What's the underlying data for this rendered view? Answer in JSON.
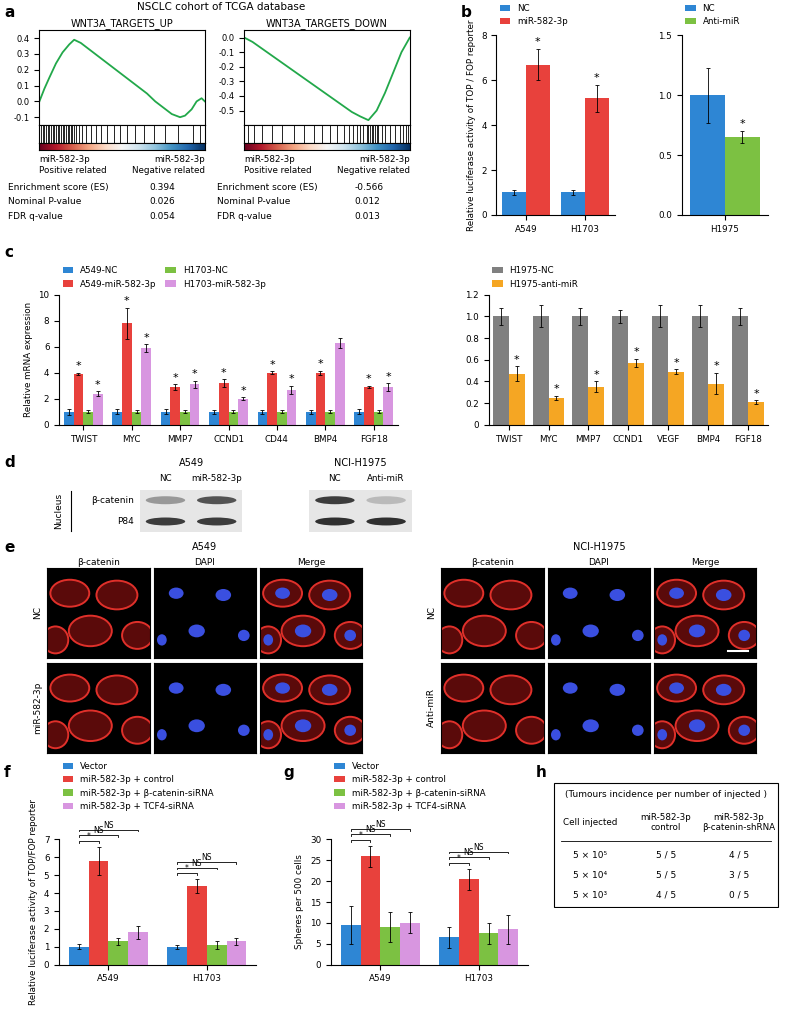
{
  "chart_data": [
    {
      "type": "gsea",
      "panel": "a",
      "header": "NSCLC cohort of TCGA database",
      "title": "WNT3A_TARGETS_UP",
      "x": [
        0,
        3,
        6,
        10,
        14,
        18,
        21,
        25,
        30,
        35,
        40,
        45,
        50,
        55,
        60,
        65,
        70,
        75,
        80,
        85,
        88,
        92,
        95,
        98,
        100
      ],
      "values": [
        0,
        0.08,
        0.15,
        0.24,
        0.31,
        0.36,
        0.39,
        0.37,
        0.33,
        0.29,
        0.25,
        0.21,
        0.17,
        0.13,
        0.09,
        0.05,
        0.0,
        -0.04,
        -0.08,
        -0.1,
        -0.09,
        -0.05,
        0.0,
        0.02,
        0.0
      ],
      "hits": [
        1,
        2,
        3,
        4,
        5,
        6,
        7,
        8,
        9,
        10,
        11,
        12,
        13,
        14,
        15,
        16,
        17,
        18,
        19,
        20,
        21,
        22,
        24,
        26,
        28,
        31,
        34,
        37,
        41,
        45,
        49,
        53,
        58,
        63,
        69,
        76,
        84,
        93,
        97
      ],
      "color": "#22a84a",
      "xlim": [
        0,
        100
      ],
      "ylim": [
        -0.15,
        0.45
      ],
      "yticks": [
        -0.1,
        0.0,
        0.1,
        0.2,
        0.3,
        0.4
      ],
      "tick_labels": "y",
      "rank_labels": [
        "miR-582-3p\nPositive related",
        "miR-582-3p\nNegative related"
      ],
      "stats": [
        {
          "label": "Enrichment score (ES)",
          "value": 0.394
        },
        {
          "label": "Nominal P-value",
          "value": 0.026
        },
        {
          "label": "FDR q-value",
          "value": 0.054
        }
      ]
    },
    {
      "type": "gsea",
      "title": "WNT3A_TARGETS_DOWN",
      "x": [
        0,
        5,
        10,
        15,
        20,
        25,
        30,
        35,
        40,
        45,
        50,
        55,
        60,
        65,
        70,
        75,
        80,
        85,
        90,
        95,
        100
      ],
      "values": [
        0,
        -0.03,
        -0.07,
        -0.11,
        -0.15,
        -0.19,
        -0.23,
        -0.27,
        -0.31,
        -0.35,
        -0.39,
        -0.43,
        -0.47,
        -0.51,
        -0.54,
        -0.566,
        -0.5,
        -0.38,
        -0.24,
        -0.1,
        0.0
      ],
      "hits": [
        2,
        6,
        11,
        17,
        23,
        30,
        36,
        42,
        47,
        52,
        56,
        60,
        63,
        66,
        68,
        70,
        72,
        74,
        75,
        76,
        77,
        78,
        79,
        80,
        81,
        83,
        85,
        88,
        91,
        94,
        96,
        98,
        99
      ],
      "color": "#22a84a",
      "xlim": [
        0,
        100
      ],
      "ylim": [
        -0.6,
        0.05
      ],
      "yticks": [
        -0.5,
        -0.4,
        -0.3,
        -0.2,
        -0.1,
        0.0
      ],
      "tick_labels": "y",
      "rank_labels": [
        "miR-582-3p\nPositive related",
        "miR-582-3p\nNegative related"
      ],
      "stats": [
        {
          "label": "Enrichment score (ES)",
          "value": -0.566
        },
        {
          "label": "Nominal P-value",
          "value": 0.012
        },
        {
          "label": "FDR q-value",
          "value": 0.013
        }
      ]
    },
    {
      "type": "bar",
      "panel": "b",
      "categories": [
        "A549",
        "H1703"
      ],
      "ylabel": "Relative luciferase activity of TOP / FOP reporter",
      "ylim": [
        0,
        8
      ],
      "yticks": [
        0,
        2,
        4,
        6,
        8
      ],
      "legend": "above",
      "series": [
        {
          "name": "NC",
          "color": "#2e86d4",
          "values": [
            1,
            1
          ],
          "errors": [
            0.1,
            0.1
          ],
          "significance": [
            null,
            null
          ]
        },
        {
          "name": "miR-582-3p",
          "color": "#e8413c",
          "values": [
            6.7,
            5.2
          ],
          "errors": [
            0.7,
            0.6
          ],
          "significance": [
            "*",
            "*"
          ]
        }
      ]
    },
    {
      "type": "bar",
      "categories": [
        "H1975"
      ],
      "ylim": [
        0,
        1.5
      ],
      "yticks": [
        0.0,
        0.5,
        1.0,
        1.5
      ],
      "legend": "above",
      "series": [
        {
          "name": "NC",
          "color": "#2e86d4",
          "values": [
            1.0
          ],
          "errors": [
            0.23
          ],
          "significance": [
            null
          ]
        },
        {
          "name": "Anti-miR",
          "color": "#7cc142",
          "values": [
            0.65
          ],
          "errors": [
            0.05
          ],
          "significance": [
            "*"
          ]
        }
      ]
    },
    {
      "type": "bar",
      "panel": "c",
      "categories": [
        "TWIST",
        "MYC",
        "MMP7",
        "CCND1",
        "CD44",
        "BMP4",
        "FGF18"
      ],
      "ylabel": "Relative mRNA expression",
      "ylim": [
        0,
        10
      ],
      "yticks": [
        0,
        2,
        4,
        6,
        8,
        10
      ],
      "legend": "above",
      "series": [
        {
          "name": "A549-NC",
          "color": "#2e86d4",
          "values": [
            1,
            1,
            1,
            1,
            1,
            1,
            1
          ],
          "errors": [
            0.25,
            0.2,
            0.2,
            0.15,
            0.15,
            0.15,
            0.2
          ]
        },
        {
          "name": "A549-miR-582-3p",
          "color": "#e8413c",
          "values": [
            3.9,
            7.8,
            2.9,
            3.2,
            4.0,
            4.0,
            2.9
          ],
          "errors": [
            0.1,
            1.2,
            0.2,
            0.3,
            0.1,
            0.15,
            0.1
          ],
          "significance": [
            "*",
            "*",
            "*",
            "*",
            "*",
            "*",
            "*"
          ]
        },
        {
          "name": "H1703-NC",
          "color": "#7cc142",
          "values": [
            1,
            1,
            1,
            1,
            1,
            1,
            1
          ],
          "errors": [
            0.1,
            0.1,
            0.1,
            0.1,
            0.1,
            0.1,
            0.1
          ]
        },
        {
          "name": "H1703-miR-582-3p",
          "color": "#d896e0",
          "values": [
            2.4,
            5.9,
            3.1,
            2.0,
            2.7,
            6.3,
            2.9
          ],
          "errors": [
            0.2,
            0.3,
            0.3,
            0.1,
            0.3,
            0.4,
            0.3
          ],
          "significance": [
            "*",
            "*",
            "*",
            "*",
            "*",
            null,
            "*"
          ]
        }
      ]
    },
    {
      "type": "bar",
      "categories": [
        "TWIST",
        "MYC",
        "MMP7",
        "CCND1",
        "VEGF",
        "BMP4",
        "FGF18"
      ],
      "ylim": [
        0,
        1.2
      ],
      "yticks": [
        0,
        0.2,
        0.4,
        0.6,
        0.8,
        1.0,
        1.2
      ],
      "legend": "above",
      "series": [
        {
          "name": "H1975-NC",
          "color": "#808080",
          "values": [
            1,
            1,
            1,
            1,
            1,
            1,
            1
          ],
          "errors": [
            0.08,
            0.1,
            0.08,
            0.06,
            0.1,
            0.1,
            0.08
          ]
        },
        {
          "name": "H1975-anti-miR",
          "color": "#f5a623",
          "values": [
            0.47,
            0.25,
            0.35,
            0.57,
            0.49,
            0.38,
            0.21
          ],
          "errors": [
            0.07,
            0.02,
            0.05,
            0.04,
            0.02,
            0.1,
            0.02
          ],
          "significance": [
            "*",
            "*",
            "*",
            "*",
            "*",
            "*",
            "*"
          ]
        }
      ]
    },
    {
      "type": "blot",
      "panel": "d",
      "compartment": "Nucleus",
      "groups": [
        {
          "name": "A549",
          "lanes": [
            "NC",
            "miR-582-3p"
          ]
        },
        {
          "name": "NCI-H1975",
          "lanes": [
            "NC",
            "Anti-miR"
          ]
        }
      ],
      "bands": [
        {
          "name": "β-catenin",
          "intensity": [
            0.45,
            0.75,
            0.85,
            0.3
          ]
        },
        {
          "name": "P84",
          "intensity": [
            0.85,
            0.85,
            0.9,
            0.9
          ]
        }
      ]
    },
    {
      "type": "image_grid",
      "panel": "e",
      "panels": [
        {
          "name": "A549",
          "columns": [
            "β-catenin",
            "DAPI",
            "Merge"
          ],
          "rows": [
            "NC",
            "miR-582-3p"
          ]
        },
        {
          "name": "NCI-H1975",
          "columns": [
            "β-catenin",
            "DAPI",
            "Merge"
          ],
          "rows": [
            "NC",
            "Anti-miR"
          ]
        }
      ]
    },
    {
      "type": "bar",
      "panel": "f",
      "categories": [
        "A549",
        "H1703"
      ],
      "ylabel": "Relative luciferase activity of TOP/FOP reporter",
      "ylim": [
        0,
        7
      ],
      "yticks": [
        0,
        1,
        2,
        3,
        4,
        5,
        6,
        7
      ],
      "legend": "above",
      "series": [
        {
          "name": "Vector",
          "color": "#2e86d4",
          "values": [
            1,
            1
          ],
          "errors": [
            0.15,
            0.1
          ]
        },
        {
          "name": "miR-582-3p + control",
          "color": "#e8413c",
          "values": [
            5.8,
            4.4
          ],
          "errors": [
            0.8,
            0.4
          ]
        },
        {
          "name": "miR-582-3p + β-catenin-siRNA",
          "color": "#7cc142",
          "values": [
            1.3,
            1.1
          ],
          "errors": [
            0.2,
            0.2
          ]
        },
        {
          "name": "miR-582-3p + TCF4-siRNA",
          "color": "#d896e0",
          "values": [
            1.8,
            1.3
          ],
          "errors": [
            0.35,
            0.2
          ]
        }
      ],
      "comparisons": [
        {
          "from": "Vector",
          "to": "miR-582-3p + control",
          "label": "*"
        },
        {
          "from": "Vector",
          "to": "miR-582-3p + β-catenin-siRNA",
          "label": "NS"
        },
        {
          "from": "Vector",
          "to": "miR-582-3p + TCF4-siRNA",
          "label": "NS"
        }
      ]
    },
    {
      "type": "bar",
      "panel": "g",
      "categories": [
        "A549",
        "H1703"
      ],
      "ylabel": "Spheres per 500 cells",
      "ylim": [
        0,
        30
      ],
      "yticks": [
        0,
        5,
        10,
        15,
        20,
        25,
        30
      ],
      "legend": "above",
      "series": [
        {
          "name": "Vector",
          "color": "#2e86d4",
          "values": [
            9.5,
            6.5
          ],
          "errors": [
            4.5,
            2.5
          ]
        },
        {
          "name": "miR-582-3p + control",
          "color": "#e8413c",
          "values": [
            26,
            20.5
          ],
          "errors": [
            2.5,
            2.5
          ]
        },
        {
          "name": "miR-582-3p + β-catenin-siRNA",
          "color": "#7cc142",
          "values": [
            9,
            7.5
          ],
          "errors": [
            3.5,
            2.5
          ]
        },
        {
          "name": "miR-582-3p + TCF4-siRNA",
          "color": "#d896e0",
          "values": [
            10,
            8.5
          ],
          "errors": [
            2.5,
            3.5
          ]
        }
      ],
      "comparisons": [
        {
          "from": "Vector",
          "to": "miR-582-3p + control",
          "label": "*"
        },
        {
          "from": "Vector",
          "to": "miR-582-3p + β-catenin-siRNA",
          "label": "NS"
        },
        {
          "from": "Vector",
          "to": "miR-582-3p + TCF4-siRNA",
          "label": "NS"
        }
      ]
    },
    {
      "type": "table",
      "panel": "h",
      "title": "(Tumours incidence per number of injected )",
      "header": [
        "Cell injected",
        "miR-582-3p\ncontrol",
        "miR-582-3p\nβ-catenin-shRNA"
      ],
      "rows": [
        [
          "5 × 10⁵",
          "5 / 5",
          "4 / 5"
        ],
        [
          "5 × 10⁴",
          "5 / 5",
          "3 / 5"
        ],
        [
          "5 × 10³",
          "4 / 5",
          "0 / 5"
        ]
      ]
    }
  ]
}
